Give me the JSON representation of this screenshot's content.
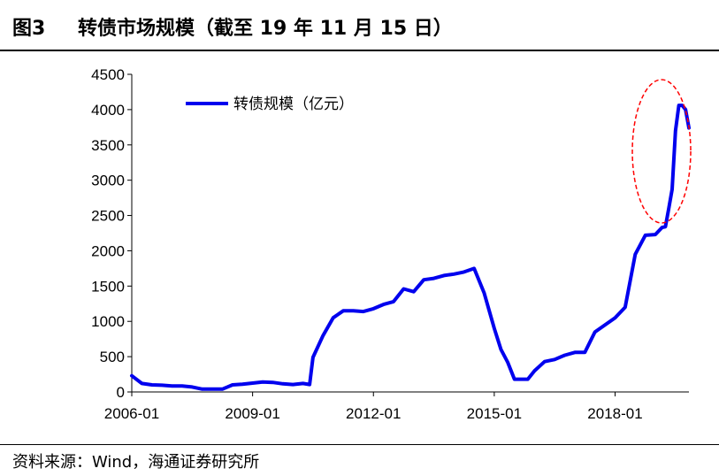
{
  "header": {
    "figure_number": "图3",
    "title": "转债市场规模（截至 19 年 11 月 15 日）"
  },
  "source": "资料来源：Wind，海通证券研究所",
  "colors": {
    "series": "#0000ee",
    "highlight": "#ff0000",
    "axis": "#000000"
  },
  "chart_data": {
    "type": "line",
    "title": "转债市场规模（截至 19 年 11 月 15 日）",
    "xlabel": "",
    "ylabel": "",
    "ylim": [
      0,
      4500
    ],
    "yticks": [
      0,
      500,
      1000,
      1500,
      2000,
      2500,
      3000,
      3500,
      4000,
      4500
    ],
    "xticks": [
      "2006-01",
      "2009-01",
      "2012-01",
      "2015-01",
      "2018-01"
    ],
    "grid": false,
    "legend": "top-left",
    "annotation": "red dashed ellipse highlighting 2019 surge",
    "series": [
      {
        "name": "转债规模（亿元）",
        "x": [
          "2006-01",
          "2006-04",
          "2006-07",
          "2006-10",
          "2007-01",
          "2007-04",
          "2007-07",
          "2007-10",
          "2008-01",
          "2008-04",
          "2008-07",
          "2008-10",
          "2009-01",
          "2009-04",
          "2009-07",
          "2009-10",
          "2010-01",
          "2010-04",
          "2010-06",
          "2010-07",
          "2010-10",
          "2011-01",
          "2011-04",
          "2011-07",
          "2011-10",
          "2012-01",
          "2012-04",
          "2012-07",
          "2012-10",
          "2013-01",
          "2013-04",
          "2013-07",
          "2013-10",
          "2014-01",
          "2014-04",
          "2014-07",
          "2014-10",
          "2015-01",
          "2015-03",
          "2015-05",
          "2015-07",
          "2015-09",
          "2015-11",
          "2016-01",
          "2016-04",
          "2016-07",
          "2016-10",
          "2017-01",
          "2017-04",
          "2017-07",
          "2017-10",
          "2018-01",
          "2018-04",
          "2018-07",
          "2018-10",
          "2019-01",
          "2019-03",
          "2019-04",
          "2019-05",
          "2019-06",
          "2019-07",
          "2019-08",
          "2019-09",
          "2019-10",
          "2019-11"
        ],
        "values": [
          230,
          120,
          100,
          95,
          85,
          85,
          70,
          40,
          40,
          40,
          100,
          110,
          125,
          140,
          135,
          115,
          105,
          120,
          105,
          490,
          800,
          1050,
          1150,
          1150,
          1140,
          1180,
          1240,
          1280,
          1460,
          1420,
          1590,
          1610,
          1650,
          1670,
          1700,
          1750,
          1400,
          900,
          600,
          420,
          180,
          180,
          180,
          300,
          430,
          460,
          520,
          560,
          560,
          850,
          950,
          1050,
          1200,
          1950,
          2220,
          2230,
          2330,
          2340,
          2600,
          2870,
          3700,
          4060,
          4060,
          4000,
          3740
        ]
      }
    ]
  }
}
